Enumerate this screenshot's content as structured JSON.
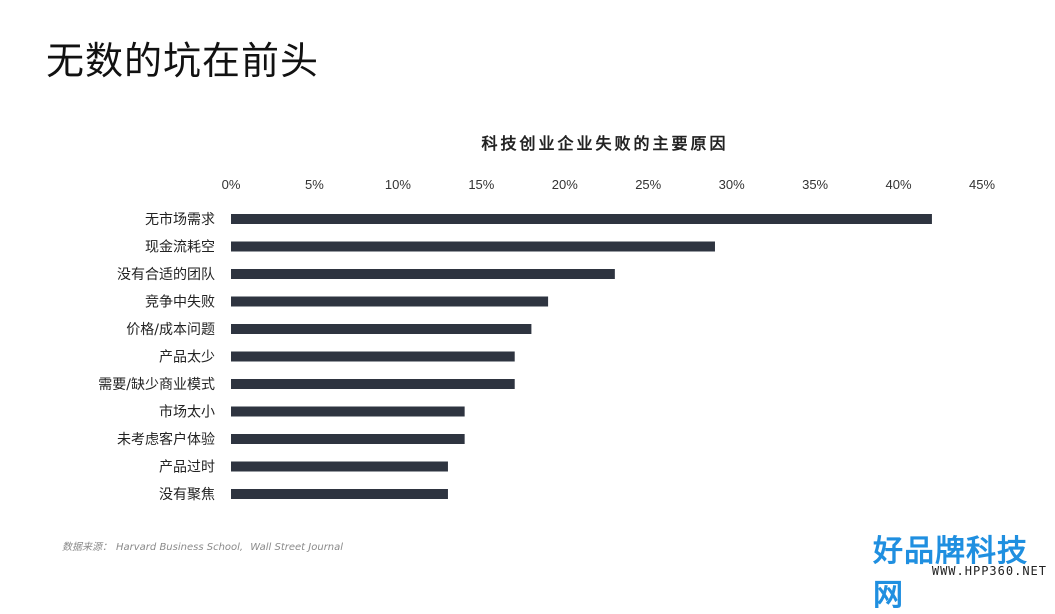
{
  "slide": {
    "title": "无数的坑在前头"
  },
  "chart_data": {
    "type": "bar",
    "orientation": "horizontal",
    "title": "科技创业企业失败的主要原因",
    "categories": [
      "无市场需求",
      "现金流耗空",
      "没有合适的团队",
      "竞争中失败",
      "价格/成本问题",
      "产品太少",
      "需要/缺少商业模式",
      "市场太小",
      "未考虑客户体验",
      "产品过时",
      "没有聚焦"
    ],
    "values": [
      42,
      29,
      23,
      19,
      18,
      17,
      17,
      14,
      14,
      13,
      13
    ],
    "x_ticks": [
      "0%",
      "5%",
      "10%",
      "15%",
      "20%",
      "25%",
      "30%",
      "35%",
      "40%",
      "45%"
    ],
    "xlim": [
      0,
      45
    ],
    "x_axis_position": "top",
    "grid": false,
    "bar_color": "#2e3440"
  },
  "source": {
    "label": "数据来源：",
    "text": "Harvard Business School,",
    "text2": "Wall Street Journal"
  },
  "watermark": {
    "brand": "好品牌科技网",
    "url": "WWW.HPP360.NET"
  }
}
